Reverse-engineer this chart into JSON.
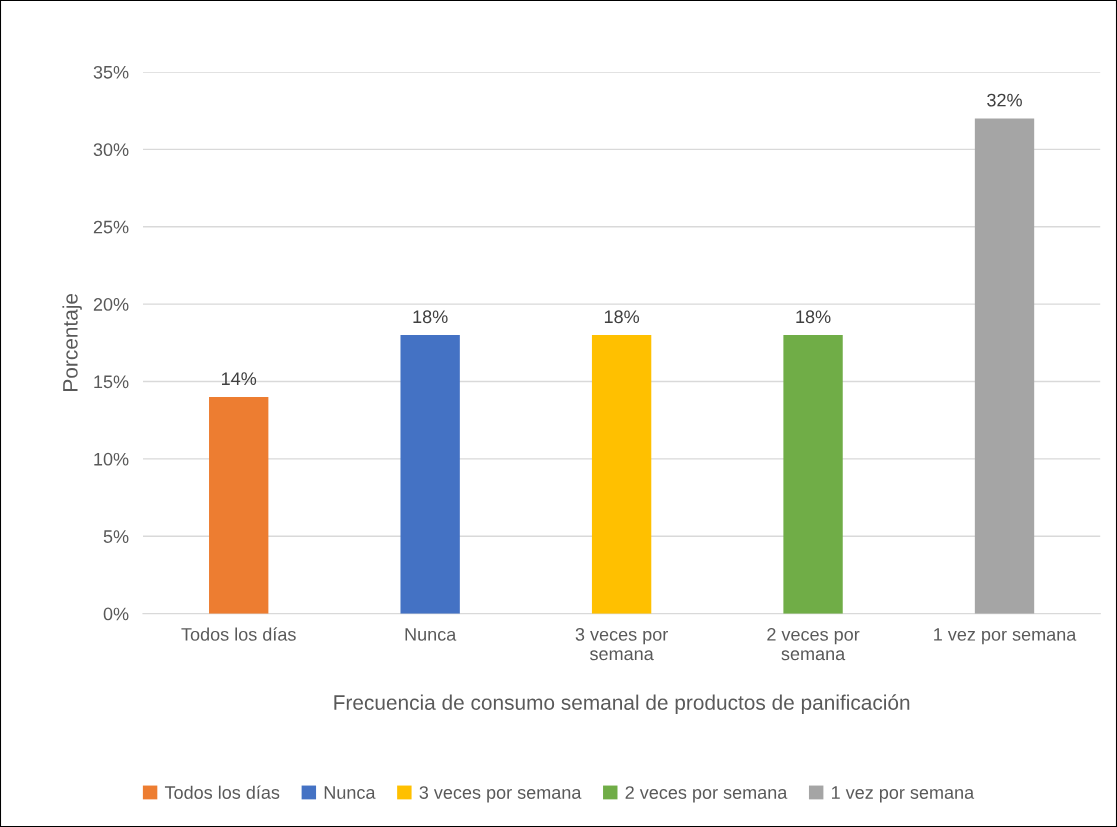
{
  "chart_data": {
    "type": "bar",
    "xlabel": "Frecuencia de consumo semanal de productos de panificación",
    "ylabel": "Porcentaje",
    "categories": [
      "Todos los días",
      "Nunca",
      "3 veces por semana",
      "2 veces por semana",
      "1 vez por semana"
    ],
    "series": [
      {
        "name": "Todos los días",
        "color": "#ed7d31",
        "values": [
          14,
          null,
          null,
          null,
          null
        ],
        "value_labels": [
          "14%",
          null,
          null,
          null,
          null
        ]
      },
      {
        "name": "Nunca",
        "color": "#4472c4",
        "values": [
          null,
          18,
          null,
          null,
          null
        ],
        "value_labels": [
          null,
          "18%",
          null,
          null,
          null
        ]
      },
      {
        "name": "3 veces por semana",
        "color": "#ffc000",
        "values": [
          null,
          null,
          18,
          null,
          null
        ],
        "value_labels": [
          null,
          null,
          "18%",
          null,
          null
        ]
      },
      {
        "name": "2 veces por semana",
        "color": "#70ad47",
        "values": [
          null,
          null,
          null,
          18,
          null
        ],
        "value_labels": [
          null,
          null,
          null,
          "18%",
          null
        ]
      },
      {
        "name": "1 vez por semana",
        "color": "#a5a5a5",
        "values": [
          null,
          null,
          null,
          null,
          32
        ],
        "value_labels": [
          null,
          null,
          null,
          null,
          "32%"
        ]
      }
    ],
    "ylim": [
      0,
      35
    ],
    "yticks": [
      {
        "value": 0,
        "label": "0%"
      },
      {
        "value": 5,
        "label": "5%"
      },
      {
        "value": 10,
        "label": "10%"
      },
      {
        "value": 15,
        "label": "15%"
      },
      {
        "value": 20,
        "label": "20%"
      },
      {
        "value": 25,
        "label": "25%"
      },
      {
        "value": 30,
        "label": "30%"
      },
      {
        "value": 35,
        "label": "35%"
      }
    ],
    "grid": "y",
    "legend": "bottom"
  }
}
